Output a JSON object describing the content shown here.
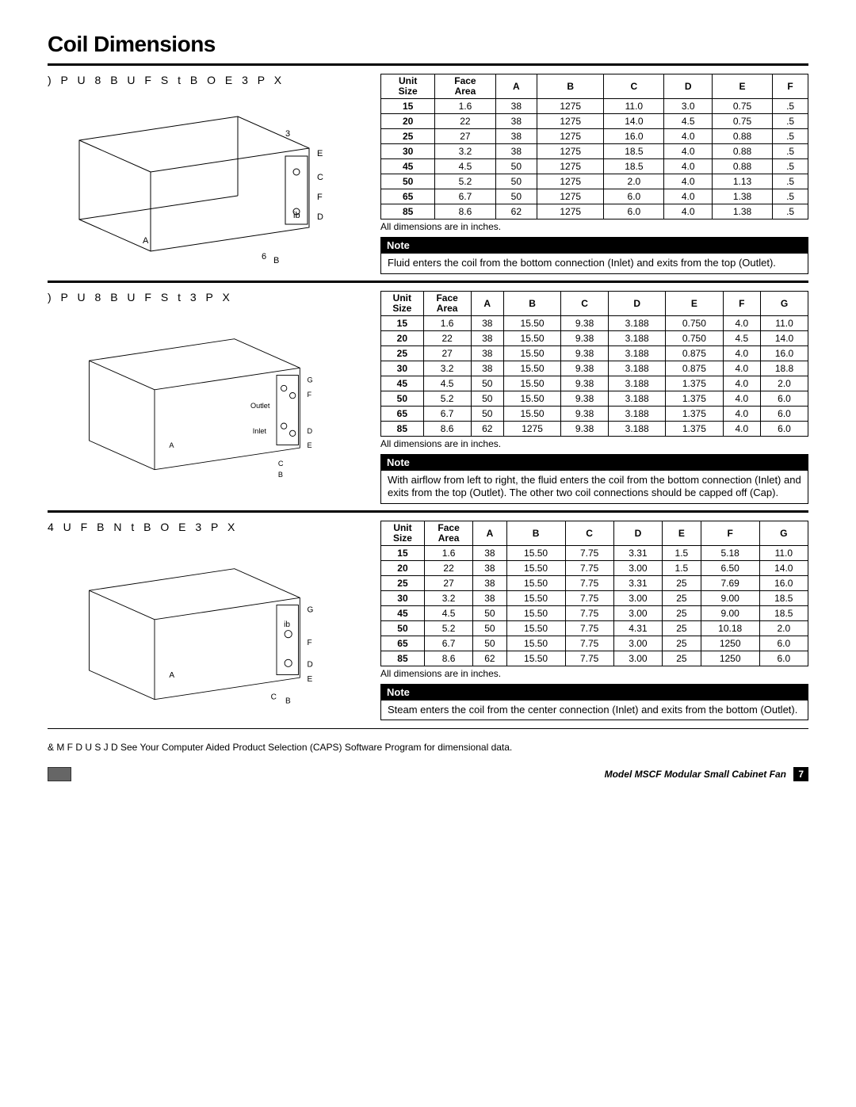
{
  "page_title": "Coil Dimensions",
  "sections": [
    {
      "title": ") P U   8 B U F S   t       B O E       3 P X",
      "table": {
        "headers": [
          "Unit Size",
          "Face Area",
          "A",
          "B",
          "C",
          "D",
          "E",
          "F"
        ],
        "rows": [
          [
            "15",
            "1.6",
            "38",
            "1275",
            "11.0",
            "3.0",
            "0.75",
            ".5"
          ],
          [
            "20",
            "22",
            "38",
            "1275",
            "14.0",
            "4.5",
            "0.75",
            ".5"
          ],
          [
            "25",
            "27",
            "38",
            "1275",
            "16.0",
            "4.0",
            "0.88",
            ".5"
          ],
          [
            "30",
            "3.2",
            "38",
            "1275",
            "18.5",
            "4.0",
            "0.88",
            ".5"
          ],
          [
            "45",
            "4.5",
            "50",
            "1275",
            "18.5",
            "4.0",
            "0.88",
            ".5"
          ],
          [
            "50",
            "5.2",
            "50",
            "1275",
            "2.0",
            "4.0",
            "1.13",
            ".5"
          ],
          [
            "65",
            "6.7",
            "50",
            "1275",
            "6.0",
            "4.0",
            "1.38",
            ".5"
          ],
          [
            "85",
            "8.6",
            "62",
            "1275",
            "6.0",
            "4.0",
            "1.38",
            ".5"
          ]
        ]
      },
      "table_note": "All dimensions are in inches.",
      "note": "Fluid enters the coil from the bottom connection (Inlet) and exits from the top (Outlet)."
    },
    {
      "title": ") P U   8 B U F S   t       3 P X",
      "table": {
        "headers": [
          "Unit Size",
          "Face Area",
          "A",
          "B",
          "C",
          "D",
          "E",
          "F",
          "G"
        ],
        "rows": [
          [
            "15",
            "1.6",
            "38",
            "15.50",
            "9.38",
            "3.188",
            "0.750",
            "4.0",
            "11.0"
          ],
          [
            "20",
            "22",
            "38",
            "15.50",
            "9.38",
            "3.188",
            "0.750",
            "4.5",
            "14.0"
          ],
          [
            "25",
            "27",
            "38",
            "15.50",
            "9.38",
            "3.188",
            "0.875",
            "4.0",
            "16.0"
          ],
          [
            "30",
            "3.2",
            "38",
            "15.50",
            "9.38",
            "3.188",
            "0.875",
            "4.0",
            "18.8"
          ],
          [
            "45",
            "4.5",
            "50",
            "15.50",
            "9.38",
            "3.188",
            "1.375",
            "4.0",
            "2.0"
          ],
          [
            "50",
            "5.2",
            "50",
            "15.50",
            "9.38",
            "3.188",
            "1.375",
            "4.0",
            "6.0"
          ],
          [
            "65",
            "6.7",
            "50",
            "15.50",
            "9.38",
            "3.188",
            "1.375",
            "4.0",
            "6.0"
          ],
          [
            "85",
            "8.6",
            "62",
            "1275",
            "9.38",
            "3.188",
            "1.375",
            "4.0",
            "6.0"
          ]
        ]
      },
      "table_note": "All dimensions are in inches.",
      "note": "With airflow from left to right, the fluid enters the coil from the bottom connection (Inlet) and exits from the top (Outlet). The other two coil connections should be capped off (Cap)."
    },
    {
      "title": "4 U F B N   t       B O E       3 P X",
      "table": {
        "headers": [
          "Unit Size",
          "Face Area",
          "A",
          "B",
          "C",
          "D",
          "E",
          "F",
          "G"
        ],
        "rows": [
          [
            "15",
            "1.6",
            "38",
            "15.50",
            "7.75",
            "3.31",
            "1.5",
            "5.18",
            "11.0"
          ],
          [
            "20",
            "22",
            "38",
            "15.50",
            "7.75",
            "3.00",
            "1.5",
            "6.50",
            "14.0"
          ],
          [
            "25",
            "27",
            "38",
            "15.50",
            "7.75",
            "3.31",
            "25",
            "7.69",
            "16.0"
          ],
          [
            "30",
            "3.2",
            "38",
            "15.50",
            "7.75",
            "3.00",
            "25",
            "9.00",
            "18.5"
          ],
          [
            "45",
            "4.5",
            "50",
            "15.50",
            "7.75",
            "3.00",
            "25",
            "9.00",
            "18.5"
          ],
          [
            "50",
            "5.2",
            "50",
            "15.50",
            "7.75",
            "4.31",
            "25",
            "10.18",
            "2.0"
          ],
          [
            "65",
            "6.7",
            "50",
            "15.50",
            "7.75",
            "3.00",
            "25",
            "1250",
            "6.0"
          ],
          [
            "85",
            "8.6",
            "62",
            "15.50",
            "7.75",
            "3.00",
            "25",
            "1250",
            "6.0"
          ]
        ]
      },
      "table_note": "All dimensions are in inches.",
      "note": "Steam enters the coil from the center connection (Inlet) and exits from the bottom (Outlet)."
    }
  ],
  "bottom_note": "& M F D U S J D See Your Computer Aided Product Selection (CAPS) Software Program for dimensional data.",
  "footer_text": "Model MSCF Modular Small Cabinet Fan",
  "page_number": "7",
  "note_label": "Note",
  "diagram_labels": {
    "d1": {
      "A": "A",
      "B": "B",
      "C": "C",
      "D": "D",
      "E": "E",
      "F": "F",
      "three": "3",
      "six": "6",
      "ib": "ib"
    },
    "d2": {
      "A": "A",
      "B": "B",
      "C": "C",
      "D": "D",
      "E": "E",
      "F": "F",
      "G": "G",
      "outlet": "Outlet",
      "inlet": "Inlet"
    },
    "d3": {
      "A": "A",
      "B": "B",
      "C": "C",
      "D": "D",
      "E": "E",
      "F": "F",
      "G": "G",
      "ib": "ib"
    }
  }
}
